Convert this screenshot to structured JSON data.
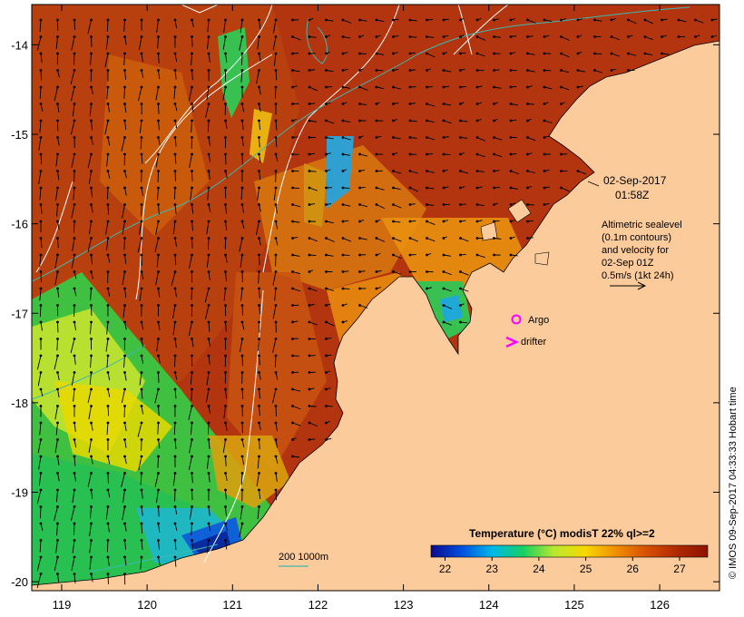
{
  "map": {
    "lon_ticks": [
      "119",
      "120",
      "121",
      "122",
      "123",
      "124",
      "125",
      "126"
    ],
    "lat_ticks": [
      "-14",
      "-15",
      "-16",
      "-17",
      "-18",
      "-19",
      "-20"
    ],
    "lon_range": [
      118.65,
      126.7
    ],
    "lat_range": [
      -20.1,
      -13.55
    ]
  },
  "annotations": {
    "date": "02-Sep-2017",
    "time": "01:58Z",
    "altimetry_lines": [
      "Altimetric sealevel",
      "(0.1m contours)",
      "and velocity for",
      "02-Sep 01Z",
      "0.5m/s (1kt 24h)"
    ]
  },
  "legend": {
    "argo_label": "Argo",
    "drifter_label": "drifter",
    "argo_color": "#ff00ff",
    "drifter_color": "#ff00ff"
  },
  "depth_legend": {
    "label": "200  1000m",
    "color": "#3fb8b0"
  },
  "colorbar": {
    "title": "Temperature (°C) modisT 22% ql>=2",
    "ticks": [
      "22",
      "23",
      "24",
      "25",
      "26",
      "27"
    ],
    "range": [
      21.7,
      27.6
    ],
    "colors": [
      "#0a0a8c",
      "#0050e0",
      "#00b8e8",
      "#18d060",
      "#b8e830",
      "#f8d800",
      "#f09000",
      "#d85000",
      "#b02800",
      "#8c1400"
    ]
  },
  "credit": "© IMOS 09-Sep-2017 04:33:33 Hobart time",
  "colors": {
    "land": "#fccb9c",
    "sst_warm": "#b23510",
    "sst_mid": "#e08a10",
    "sst_cool": "#38c040"
  }
}
